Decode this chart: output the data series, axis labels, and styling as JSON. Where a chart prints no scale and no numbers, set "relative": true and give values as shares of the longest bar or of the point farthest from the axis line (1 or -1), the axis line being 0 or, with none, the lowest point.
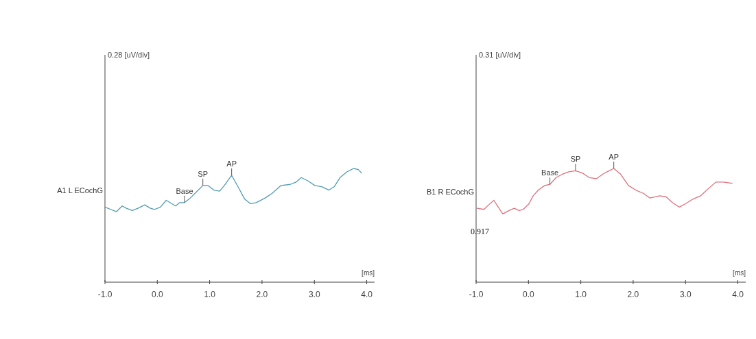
{
  "chart_data": [
    {
      "type": "line",
      "relative": true,
      "xlabel": "[ms]",
      "tick_labels": "x",
      "marker": "none",
      "line_style": "solid",
      "xlim": [
        -1,
        4.15
      ],
      "xticks": [
        {
          "value": -1,
          "label": "-1.0"
        },
        {
          "value": 0,
          "label": "0.0"
        },
        {
          "value": 1,
          "label": "1.0"
        },
        {
          "value": 2,
          "label": "2.0"
        },
        {
          "value": 3,
          "label": "3.0"
        },
        {
          "value": 4,
          "label": "4.0"
        }
      ],
      "series": [
        {
          "name": "A1 L ECochG",
          "color": "#4f9bb3",
          "x": [
            -1.0,
            -0.89,
            -0.78,
            -0.67,
            -0.59,
            -0.48,
            -0.37,
            -0.24,
            -0.13,
            -0.05,
            0.06,
            0.17,
            0.28,
            0.35,
            0.43,
            0.52,
            0.63,
            0.76,
            0.87,
            0.97,
            1.08,
            1.19,
            1.28,
            1.42,
            1.54,
            1.67,
            1.78,
            1.89,
            2.06,
            2.19,
            2.36,
            2.54,
            2.65,
            2.75,
            2.88,
            3.01,
            3.14,
            3.28,
            3.38,
            3.49,
            3.62,
            3.75,
            3.84,
            3.9
          ],
          "values": [
            0.66,
            0.64,
            0.62,
            0.67,
            0.65,
            0.63,
            0.65,
            0.68,
            0.65,
            0.64,
            0.66,
            0.72,
            0.69,
            0.67,
            0.7,
            0.7,
            0.74,
            0.8,
            0.85,
            0.85,
            0.81,
            0.8,
            0.85,
            0.94,
            0.84,
            0.73,
            0.69,
            0.7,
            0.74,
            0.78,
            0.85,
            0.86,
            0.88,
            0.92,
            0.89,
            0.85,
            0.84,
            0.81,
            0.84,
            0.92,
            0.97,
            1.0,
            0.99,
            0.96
          ]
        }
      ],
      "annotations": [
        "0.28 [uV/div]",
        {
          "text": "Base",
          "x": 0.52,
          "y": 0.7
        },
        {
          "text": "SP",
          "x": 0.87,
          "y": 0.85
        },
        {
          "text": "AP",
          "x": 1.42,
          "y": 0.94
        }
      ]
    },
    {
      "type": "line",
      "relative": true,
      "xlabel": "[ms]",
      "tick_labels": "x",
      "marker": "none",
      "line_style": "solid",
      "xlim": [
        -1,
        4.15
      ],
      "xticks": [
        {
          "value": -1,
          "label": "-1.0"
        },
        {
          "value": 0,
          "label": "0.0"
        },
        {
          "value": 1,
          "label": "1.0"
        },
        {
          "value": 2,
          "label": "2.0"
        },
        {
          "value": 3,
          "label": "3.0"
        },
        {
          "value": 4,
          "label": "4.0"
        }
      ],
      "series": [
        {
          "name": "B1 R ECochG",
          "color": "#e0707c",
          "x": [
            -0.98,
            -0.85,
            -0.76,
            -0.66,
            -0.59,
            -0.49,
            -0.37,
            -0.27,
            -0.18,
            -0.1,
            0.01,
            0.09,
            0.19,
            0.31,
            0.41,
            0.53,
            0.65,
            0.77,
            0.9,
            1.03,
            1.16,
            1.3,
            1.42,
            1.54,
            1.63,
            1.76,
            1.91,
            2.05,
            2.2,
            2.32,
            2.51,
            2.63,
            2.75,
            2.88,
            3.0,
            3.14,
            3.29,
            3.43,
            3.58,
            3.72,
            3.89
          ],
          "values": [
            0.65,
            0.64,
            0.68,
            0.72,
            0.67,
            0.6,
            0.63,
            0.65,
            0.63,
            0.64,
            0.69,
            0.76,
            0.81,
            0.85,
            0.86,
            0.92,
            0.95,
            0.97,
            0.98,
            0.96,
            0.92,
            0.91,
            0.95,
            0.98,
            1.0,
            0.95,
            0.85,
            0.81,
            0.78,
            0.74,
            0.76,
            0.75,
            0.7,
            0.66,
            0.69,
            0.73,
            0.76,
            0.82,
            0.88,
            0.88,
            0.87
          ]
        }
      ],
      "annotations": [
        "0.31 [uV/div]",
        {
          "text": "Base",
          "x": 0.41,
          "y": 0.86
        },
        {
          "text": "SP",
          "x": 0.9,
          "y": 0.98
        },
        {
          "text": "AP",
          "x": 1.63,
          "y": 1.0
        },
        "0.917"
      ]
    }
  ]
}
